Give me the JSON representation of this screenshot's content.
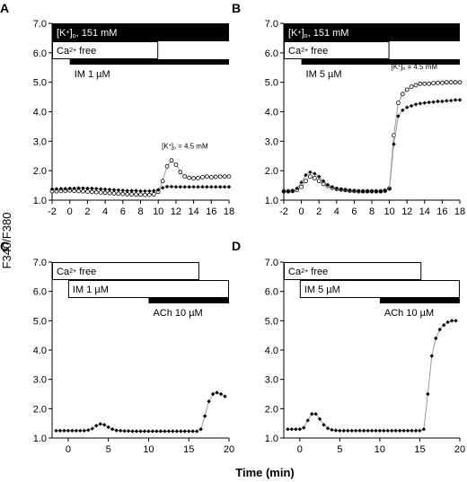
{
  "figure": {
    "ylabel": "F340/F380",
    "xlabel": "Time (min)"
  },
  "colors": {
    "ink": "#000000",
    "bar_fill": "#000000",
    "bar_text": "#ffffff",
    "open_bar_fill": "#ffffff",
    "gray_trace": "#999999"
  },
  "chart_data": [
    {
      "panel": "A",
      "type": "scatter",
      "xlim": [
        -2,
        18
      ],
      "ylim": [
        1.0,
        7.0
      ],
      "xticks": [
        "-2",
        "0",
        "2",
        "4",
        "6",
        "8",
        "10",
        "12",
        "14",
        "16",
        "18"
      ],
      "yticks": [
        "1.0",
        "2.0",
        "3.0",
        "4.0",
        "5.0",
        "6.0",
        "7.0"
      ],
      "bars": [
        {
          "label_base": "[K",
          "label_sup": "+",
          "label_rest": "]",
          "label_sub": "o",
          "label_tail": ", 151 mM",
          "x0": -2,
          "x1": 18,
          "filled": true
        },
        {
          "label_base": "Ca",
          "label_sup": "2+",
          "label_tail": " free",
          "x0": -2,
          "x1": 10,
          "filled": false
        },
        {
          "label_base": "IM 1 µM",
          "x0": 0,
          "x1": 18,
          "filled": true,
          "thin": true
        }
      ],
      "annotations": [
        {
          "base": "[K",
          "sup": "+",
          "rest": "]",
          "sub": "o",
          "tail": " = 4.5 mM",
          "x": 10.4,
          "y": 2.75
        }
      ],
      "series": [
        {
          "style": "open",
          "x": [
            -2,
            -1.5,
            -1,
            -0.5,
            0,
            0.5,
            1,
            1.5,
            2,
            2.5,
            3,
            3.5,
            4,
            4.5,
            5,
            5.5,
            6,
            6.5,
            7,
            7.5,
            8,
            8.5,
            9,
            9.5,
            10,
            10.5,
            11,
            11.5,
            12,
            12.5,
            13,
            13.5,
            14,
            14.5,
            15,
            15.5,
            16,
            16.5,
            17,
            17.5,
            18
          ],
          "y": [
            1.3,
            1.3,
            1.31,
            1.32,
            1.33,
            1.32,
            1.31,
            1.3,
            1.29,
            1.28,
            1.27,
            1.26,
            1.25,
            1.24,
            1.23,
            1.22,
            1.21,
            1.2,
            1.2,
            1.19,
            1.19,
            1.18,
            1.18,
            1.2,
            1.28,
            1.65,
            2.15,
            2.35,
            2.2,
            1.95,
            1.8,
            1.76,
            1.74,
            1.75,
            1.78,
            1.8,
            1.78,
            1.79,
            1.8,
            1.8,
            1.8
          ]
        },
        {
          "style": "filled",
          "x": [
            -2,
            -1.5,
            -1,
            -0.5,
            0,
            0.5,
            1,
            1.5,
            2,
            2.5,
            3,
            3.5,
            4,
            4.5,
            5,
            5.5,
            6,
            6.5,
            7,
            7.5,
            8,
            8.5,
            9,
            9.5,
            10,
            10.5,
            11,
            11.5,
            12,
            12.5,
            13,
            13.5,
            14,
            14.5,
            15,
            15.5,
            16,
            16.5,
            17,
            17.5,
            18
          ],
          "y": [
            1.38,
            1.38,
            1.39,
            1.39,
            1.4,
            1.4,
            1.41,
            1.41,
            1.4,
            1.4,
            1.39,
            1.38,
            1.37,
            1.36,
            1.35,
            1.34,
            1.33,
            1.32,
            1.32,
            1.32,
            1.31,
            1.31,
            1.31,
            1.32,
            1.35,
            1.42,
            1.46,
            1.46,
            1.45,
            1.45,
            1.45,
            1.45,
            1.45,
            1.45,
            1.45,
            1.45,
            1.45,
            1.45,
            1.45,
            1.45,
            1.45
          ]
        }
      ]
    },
    {
      "panel": "B",
      "type": "scatter",
      "xlim": [
        -2,
        18
      ],
      "ylim": [
        1.0,
        7.0
      ],
      "xticks": [
        "-2",
        "0",
        "2",
        "4",
        "6",
        "8",
        "10",
        "12",
        "14",
        "16",
        "18"
      ],
      "yticks": [
        "1.0",
        "2.0",
        "3.0",
        "4.0",
        "5.0",
        "6.0",
        "7.0"
      ],
      "bars": [
        {
          "label_base": "[K",
          "label_sup": "+",
          "label_rest": "]",
          "label_sub": "o",
          "label_tail": ", 151 mM",
          "x0": -2,
          "x1": 18,
          "filled": true
        },
        {
          "label_base": "Ca",
          "label_sup": "2+",
          "label_tail": " free",
          "x0": -2,
          "x1": 10,
          "filled": false
        },
        {
          "label_base": "IM 5 µM",
          "x0": 0,
          "x1": 18,
          "filled": true,
          "thin": true
        }
      ],
      "annotations": [
        {
          "base": "[K",
          "sup": "+",
          "rest": "]",
          "sub": "o",
          "tail": " = 4.5 mM",
          "x": 10.2,
          "y": 5.45
        }
      ],
      "series": [
        {
          "style": "open",
          "x": [
            -2,
            -1.5,
            -1,
            -0.5,
            0,
            0.5,
            1,
            1.5,
            2,
            2.5,
            3,
            3.5,
            4,
            4.5,
            5,
            5.5,
            6,
            6.5,
            7,
            7.5,
            8,
            8.5,
            9,
            9.5,
            10,
            10.5,
            11,
            11.5,
            12,
            12.5,
            13,
            13.5,
            14,
            14.5,
            15,
            15.5,
            16,
            16.5,
            17,
            17.5,
            18
          ],
          "y": [
            1.3,
            1.3,
            1.31,
            1.35,
            1.45,
            1.65,
            1.8,
            1.75,
            1.65,
            1.55,
            1.48,
            1.42,
            1.38,
            1.36,
            1.34,
            1.32,
            1.31,
            1.3,
            1.3,
            1.3,
            1.3,
            1.3,
            1.3,
            1.32,
            1.4,
            3.2,
            4.3,
            4.6,
            4.75,
            4.85,
            4.9,
            4.95,
            4.95,
            4.95,
            4.97,
            4.98,
            4.98,
            5.0,
            5.0,
            5.0,
            5.0
          ]
        },
        {
          "style": "filled",
          "x": [
            -2,
            -1.5,
            -1,
            -0.5,
            0,
            0.5,
            1,
            1.5,
            2,
            2.5,
            3,
            3.5,
            4,
            4.5,
            5,
            5.5,
            6,
            6.5,
            7,
            7.5,
            8,
            8.5,
            9,
            9.5,
            10,
            10.5,
            11,
            11.5,
            12,
            12.5,
            13,
            13.5,
            14,
            14.5,
            15,
            15.5,
            16,
            16.5,
            17,
            17.5,
            18
          ],
          "y": [
            1.3,
            1.3,
            1.31,
            1.4,
            1.6,
            1.85,
            1.95,
            1.9,
            1.8,
            1.65,
            1.52,
            1.45,
            1.4,
            1.37,
            1.35,
            1.33,
            1.32,
            1.31,
            1.3,
            1.3,
            1.3,
            1.3,
            1.3,
            1.32,
            1.38,
            2.9,
            3.85,
            4.05,
            4.15,
            4.2,
            4.25,
            4.28,
            4.3,
            4.32,
            4.33,
            4.35,
            4.35,
            4.37,
            4.38,
            4.4,
            4.4
          ]
        }
      ]
    },
    {
      "panel": "C",
      "type": "scatter",
      "xlim": [
        -2,
        20
      ],
      "ylim": [
        1.0,
        7.0
      ],
      "xticks": [
        "0",
        "5",
        "10",
        "15",
        "20"
      ],
      "yticks": [
        "1.0",
        "2.0",
        "3.0",
        "4.0",
        "5.0",
        "6.0",
        "7.0"
      ],
      "bars": [
        {
          "label_base": "Ca",
          "label_sup": "2+",
          "label_tail": " free",
          "x0": -2,
          "x1": 16.3,
          "filled": false
        },
        {
          "label_base": "IM 1 µM",
          "x0": 0,
          "x1": 20,
          "filled": false
        },
        {
          "label_base": "ACh 10 µM",
          "x0": 10,
          "x1": 20,
          "filled": true,
          "thin": true
        }
      ],
      "annotations": [],
      "series": [
        {
          "style": "filled",
          "x": [
            -1.5,
            -1,
            -0.5,
            0,
            0.5,
            1,
            1.5,
            2,
            2.5,
            3,
            3.5,
            4,
            4.5,
            5,
            5.5,
            6,
            6.5,
            7,
            7.5,
            8,
            8.5,
            9,
            9.5,
            10,
            10.5,
            11,
            11.5,
            12,
            12.5,
            13,
            13.5,
            14,
            14.5,
            15,
            15.5,
            16,
            16.5,
            17,
            17.5,
            18,
            18.5,
            19,
            19.5
          ],
          "y": [
            1.25,
            1.25,
            1.25,
            1.25,
            1.25,
            1.25,
            1.25,
            1.25,
            1.27,
            1.32,
            1.42,
            1.48,
            1.45,
            1.37,
            1.3,
            1.26,
            1.25,
            1.24,
            1.24,
            1.23,
            1.23,
            1.23,
            1.23,
            1.23,
            1.23,
            1.23,
            1.23,
            1.23,
            1.23,
            1.23,
            1.23,
            1.23,
            1.23,
            1.23,
            1.23,
            1.23,
            1.3,
            1.75,
            2.25,
            2.5,
            2.55,
            2.5,
            2.42
          ]
        }
      ]
    },
    {
      "panel": "D",
      "type": "scatter",
      "xlim": [
        -2,
        20
      ],
      "ylim": [
        1.0,
        7.0
      ],
      "xticks": [
        "0",
        "5",
        "10",
        "15",
        "20"
      ],
      "yticks": [
        "1.0",
        "2.0",
        "3.0",
        "4.0",
        "5.0",
        "6.0",
        "7.0"
      ],
      "bars": [
        {
          "label_base": "Ca",
          "label_sup": "2+",
          "label_tail": " free",
          "x0": -2,
          "x1": 15.2,
          "filled": false
        },
        {
          "label_base": "IM 5 µM",
          "x0": 0,
          "x1": 20,
          "filled": false
        },
        {
          "label_base": "ACh 10 µM",
          "x0": 10,
          "x1": 20,
          "filled": true,
          "thin": true
        }
      ],
      "annotations": [],
      "series": [
        {
          "style": "filled",
          "x": [
            -1.5,
            -1,
            -0.5,
            0,
            0.5,
            1,
            1.5,
            2,
            2.5,
            3,
            3.5,
            4,
            4.5,
            5,
            5.5,
            6,
            6.5,
            7,
            7.5,
            8,
            8.5,
            9,
            9.5,
            10,
            10.5,
            11,
            11.5,
            12,
            12.5,
            13,
            13.5,
            14,
            14.5,
            15,
            15.5,
            16,
            16.5,
            17,
            17.5,
            18,
            18.5,
            19,
            19.5
          ],
          "y": [
            1.3,
            1.3,
            1.3,
            1.3,
            1.35,
            1.6,
            1.82,
            1.82,
            1.65,
            1.45,
            1.33,
            1.28,
            1.26,
            1.25,
            1.25,
            1.25,
            1.25,
            1.25,
            1.25,
            1.25,
            1.25,
            1.25,
            1.25,
            1.25,
            1.25,
            1.25,
            1.25,
            1.25,
            1.25,
            1.25,
            1.25,
            1.25,
            1.25,
            1.25,
            1.3,
            2.5,
            3.8,
            4.4,
            4.7,
            4.85,
            4.95,
            5.0,
            5.0
          ]
        }
      ]
    }
  ]
}
